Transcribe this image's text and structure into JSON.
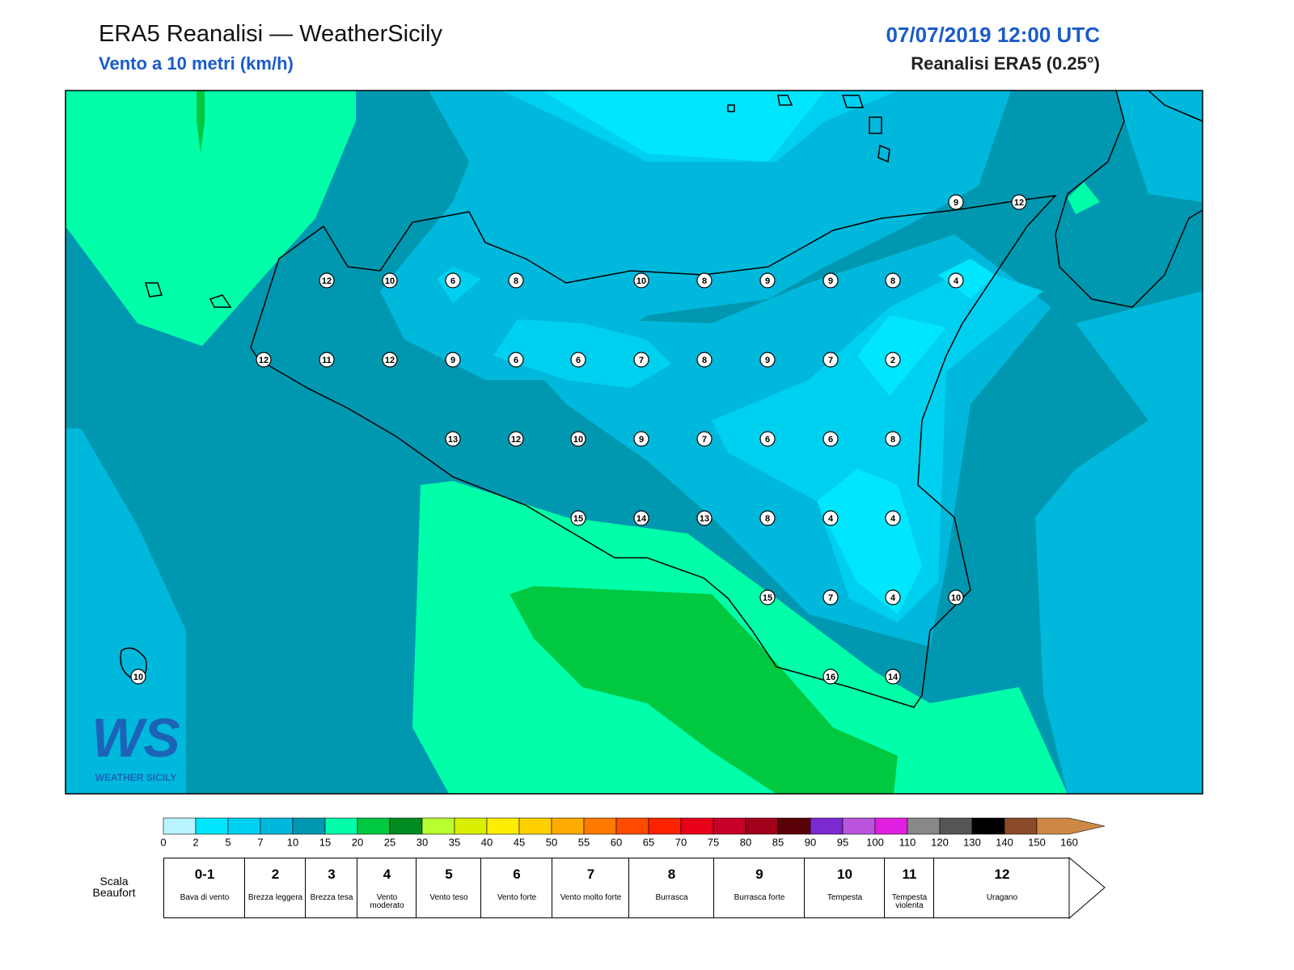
{
  "header": {
    "title": "ERA5 Reanalisi — WeatherSicily",
    "subtitle": "Vento a 10 metri (km/h)",
    "date": "07/07/2019 12:00 UTC",
    "source": "Reanalisi ERA5 (0.25°)"
  },
  "stations": [
    9,
    12,
    12,
    10,
    6,
    8,
    10,
    8,
    9,
    9,
    8,
    4,
    12,
    11,
    12,
    9,
    6,
    6,
    7,
    8,
    9,
    7,
    2,
    13,
    12,
    10,
    9,
    7,
    6,
    6,
    8,
    15,
    14,
    13,
    8,
    4,
    4,
    15,
    7,
    4,
    10,
    10,
    16,
    14
  ],
  "logo": {
    "mark": "WS",
    "text": "WEATHER SICILY"
  },
  "colorbar": {
    "ticks": [
      0,
      2,
      5,
      7,
      10,
      15,
      20,
      25,
      30,
      35,
      40,
      45,
      50,
      55,
      60,
      65,
      70,
      75,
      80,
      85,
      90,
      95,
      100,
      110,
      120,
      130,
      140,
      150,
      160
    ],
    "colors": [
      "#b8f4ff",
      "#00e6ff",
      "#00d0f0",
      "#00b8dc",
      "#0098b0",
      "#00ffa8",
      "#00c840",
      "#008a20",
      "#b8ff30",
      "#d8f000",
      "#ffee00",
      "#ffd000",
      "#ffaa00",
      "#ff7a00",
      "#ff4a00",
      "#ff2200",
      "#e8001a",
      "#c8002a",
      "#a0001a",
      "#5a0008",
      "#7a2ad0",
      "#bb55dd",
      "#e020e0",
      "#888888",
      "#555555",
      "#000000",
      "#8b4a2a",
      "#cc8844"
    ]
  },
  "beaufort": {
    "label": "Scala Beaufort",
    "levels": [
      {
        "number": "0-1",
        "desc": "Bava di vento"
      },
      {
        "number": "2",
        "desc": "Brezza leggera"
      },
      {
        "number": "3",
        "desc": "Brezza tesa"
      },
      {
        "number": "4",
        "desc": "Vento moderato"
      },
      {
        "number": "5",
        "desc": "Vento teso"
      },
      {
        "number": "6",
        "desc": "Vento forte"
      },
      {
        "number": "7",
        "desc": "Vento molto forte"
      },
      {
        "number": "8",
        "desc": "Burrasca"
      },
      {
        "number": "9",
        "desc": "Burrasca forte"
      },
      {
        "number": "10",
        "desc": "Tempesta"
      },
      {
        "number": "11",
        "desc": "Tempesta violenta"
      },
      {
        "number": "12",
        "desc": "Uragano"
      }
    ]
  }
}
